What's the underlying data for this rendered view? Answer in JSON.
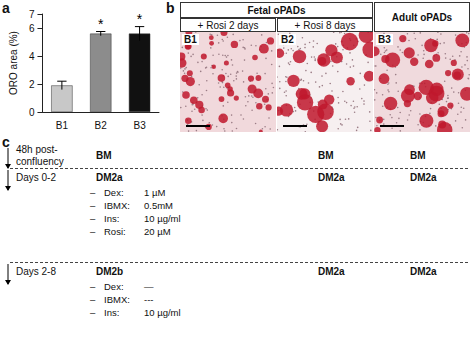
{
  "chart_data": {
    "type": "bar",
    "title": "a",
    "categories": [
      "B1",
      "B2",
      "B3"
    ],
    "values": [
      1.9,
      5.6,
      5.6
    ],
    "errors": [
      0.3,
      0.15,
      0.5
    ],
    "annotations": [
      null,
      "*",
      "*"
    ],
    "colors": [
      "#c8c8c8",
      "#8c8c8c",
      "#111111"
    ],
    "ylabel": "ORO area (%)",
    "ylim": [
      0,
      7
    ],
    "yticks": [
      0,
      2,
      4,
      6
    ],
    "grid": false
  },
  "panel_b": {
    "label": "b",
    "groups": [
      {
        "title": "Fetal oPADs",
        "images": [
          {
            "label": "B1",
            "condition": "+ Rosi 2 days"
          },
          {
            "label": "B2",
            "condition": "+ Rosi 8 days"
          }
        ]
      },
      {
        "title": "Adult oPADs",
        "images": [
          {
            "label": "B3"
          }
        ]
      }
    ]
  },
  "panel_c": {
    "label": "c",
    "bullet": "–",
    "stages": [
      [
        "48h post-",
        "confluency"
      ],
      [
        "Days 0-2"
      ],
      [
        "Days 2-8"
      ]
    ],
    "columns": [
      [
        {
          "medium": "BM"
        },
        {
          "medium": "DM2a",
          "components": [
            [
              "Dex:",
              "1 µM"
            ],
            [
              "IBMX:",
              "0.5mM"
            ],
            [
              "Ins:",
              "10 µg/ml"
            ],
            [
              "Rosi:",
              "20 µM"
            ]
          ]
        },
        {
          "medium": "DM2b",
          "components": [
            [
              "Dex:",
              "—"
            ],
            [
              "IBMX:",
              "---"
            ],
            [
              "Ins:",
              "10 µg/ml"
            ]
          ]
        }
      ],
      [
        {
          "medium": "BM"
        },
        {
          "medium": "DM2a"
        },
        {
          "medium": "DM2a"
        }
      ],
      [
        {
          "medium": "BM"
        },
        {
          "medium": "DM2a"
        },
        {
          "medium": "DM2a"
        }
      ]
    ]
  }
}
